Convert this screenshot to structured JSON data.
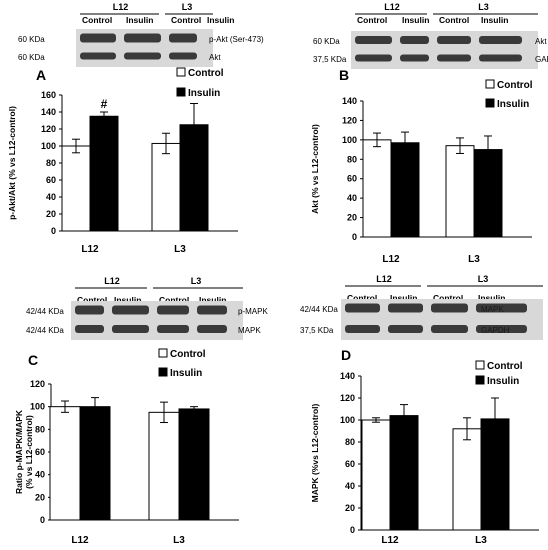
{
  "colors": {
    "control": "#ffffff",
    "insulin": "#000000",
    "axis": "#000000"
  },
  "panels": [
    {
      "letter": "A",
      "blot": {
        "groups": [
          "L12",
          "L3"
        ],
        "lanes": [
          "Control",
          "Insulin",
          "Control",
          "Insulin"
        ],
        "rows": [
          {
            "size": "60 KDa",
            "name": "p-Akt (Ser-473)"
          },
          {
            "size": "60 KDa",
            "name": "Akt"
          }
        ]
      }
    },
    {
      "letter": "B",
      "blot": {
        "groups": [
          "L12",
          "L3"
        ],
        "lanes": [
          "Control",
          "Insulin",
          "Control",
          "Insulin"
        ],
        "rows": [
          {
            "size": "60 KDa",
            "name": "Akt"
          },
          {
            "size": "37,5 KDa",
            "name": "GAPDH"
          }
        ]
      }
    },
    {
      "letter": "C",
      "blot": {
        "groups": [
          "L12",
          "L3"
        ],
        "lanes": [
          "Control",
          "Insulin",
          "Control",
          "Insulin"
        ],
        "rows": [
          {
            "size": "42/44 KDa",
            "name": "p-MAPK"
          },
          {
            "size": "42/44 KDa",
            "name": "MAPK"
          }
        ]
      }
    },
    {
      "letter": "D",
      "blot": {
        "groups": [
          "L12",
          "L3"
        ],
        "lanes": [
          "Control",
          "Insulin",
          "Control",
          "Insulin"
        ],
        "rows": [
          {
            "size": "42/44 KDa",
            "name": "MAPK"
          },
          {
            "size": "37,5 KDa",
            "name": "GAPDH"
          }
        ]
      }
    }
  ],
  "chart_data": [
    {
      "panel": "A",
      "type": "bar",
      "categories": [
        "L12",
        "L3"
      ],
      "series": [
        {
          "name": "Control",
          "values": [
            100,
            103
          ],
          "errors": [
            8,
            12
          ]
        },
        {
          "name": "Insulin",
          "values": [
            135,
            125
          ],
          "errors": [
            5,
            25
          ]
        }
      ],
      "annotations": [
        {
          "category": "L12",
          "series": "Insulin",
          "text": "#"
        }
      ],
      "ylabel": "p-Akt/Akt (% vs L12-control)",
      "ylim": [
        0,
        160
      ],
      "yticks": [
        0,
        20,
        40,
        60,
        80,
        100,
        120,
        140,
        160
      ],
      "legend_position": "top-right",
      "grid": false
    },
    {
      "panel": "B",
      "type": "bar",
      "categories": [
        "L12",
        "L3"
      ],
      "series": [
        {
          "name": "Control",
          "values": [
            100,
            94
          ],
          "errors": [
            7,
            8
          ]
        },
        {
          "name": "Insulin",
          "values": [
            97,
            90
          ],
          "errors": [
            11,
            14
          ]
        }
      ],
      "annotations": [],
      "ylabel": "Akt (% vs L12-control)",
      "ylim": [
        0,
        140
      ],
      "yticks": [
        0,
        20,
        40,
        60,
        80,
        100,
        120,
        140
      ],
      "legend_position": "top-right",
      "grid": false
    },
    {
      "panel": "C",
      "type": "bar",
      "categories": [
        "L12",
        "L3"
      ],
      "series": [
        {
          "name": "Control",
          "values": [
            100,
            95
          ],
          "errors": [
            5,
            9
          ]
        },
        {
          "name": "Insulin",
          "values": [
            100,
            98
          ],
          "errors": [
            8,
            2
          ]
        }
      ],
      "annotations": [],
      "ylabel": "Ratio p-MAPK/MAPK (% vs L12-control)",
      "ylim": [
        0,
        120
      ],
      "yticks": [
        0,
        20,
        40,
        60,
        80,
        100,
        120
      ],
      "legend_position": "top-right",
      "grid": false
    },
    {
      "panel": "D",
      "type": "bar",
      "categories": [
        "L12",
        "L3"
      ],
      "series": [
        {
          "name": "Control",
          "values": [
            100,
            92
          ],
          "errors": [
            2,
            10
          ]
        },
        {
          "name": "Insulin",
          "values": [
            104,
            101
          ],
          "errors": [
            10,
            19
          ]
        }
      ],
      "annotations": [],
      "ylabel": "MAPK (%vs L12-control)",
      "ylim": [
        0,
        140
      ],
      "yticks": [
        0,
        20,
        40,
        60,
        80,
        100,
        120,
        140
      ],
      "legend_position": "top-right",
      "grid": false
    }
  ]
}
